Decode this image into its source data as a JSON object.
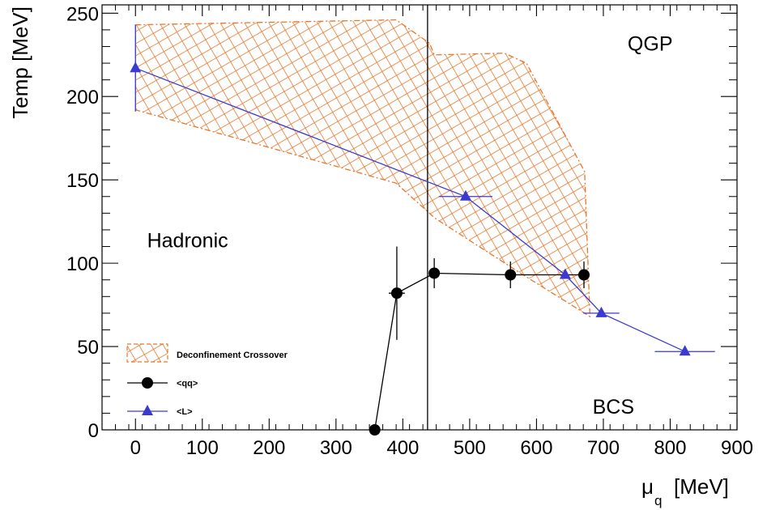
{
  "chart_data": {
    "type": "scatter",
    "title": "",
    "xlabel": "μ",
    "xlabel_subscript": "q",
    "xlabel_unit": "[MeV]",
    "ylabel": "Temp [MeV]",
    "xlim": [
      -50,
      900
    ],
    "ylim": [
      0,
      255
    ],
    "x_ticks": [
      0,
      100,
      200,
      300,
      400,
      500,
      600,
      700,
      800,
      900
    ],
    "y_ticks": [
      0,
      50,
      100,
      150,
      200,
      250
    ],
    "grid": false,
    "legend_placement": "bottom-left",
    "colors": {
      "band": "#e8762a",
      "qq": "#000000",
      "L": "#3a3ad0",
      "vertical_line": "#000000"
    },
    "region_labels": [
      {
        "text": "QGP",
        "x": 770,
        "y": 232
      },
      {
        "text": "Hadronic",
        "x": 78,
        "y": 114
      },
      {
        "text": "BCS",
        "x": 715,
        "y": 14
      }
    ],
    "vertical_line": {
      "x": 437
    },
    "band": {
      "name": "Deconfinement Crossover",
      "upper": [
        [
          0,
          243
        ],
        [
          390,
          246
        ],
        [
          440,
          232
        ],
        [
          447,
          225
        ],
        [
          552,
          226
        ],
        [
          585,
          220
        ],
        [
          672,
          155
        ]
      ],
      "lower": [
        [
          0,
          192
        ],
        [
          390,
          148
        ],
        [
          448,
          127
        ],
        [
          580,
          93
        ],
        [
          680,
          68
        ]
      ]
    },
    "series": [
      {
        "name": "<qq>",
        "marker": "circle",
        "points": [
          {
            "x": 358,
            "y": 0,
            "xerr": 0,
            "yerr": 0
          },
          {
            "x": 391,
            "y": 82,
            "xerr": 12,
            "yerr": 28
          },
          {
            "x": 447,
            "y": 94,
            "xerr": 0,
            "yerr": 9
          },
          {
            "x": 561,
            "y": 93,
            "xerr": 0,
            "yerr": 8
          },
          {
            "x": 671,
            "y": 93,
            "xerr": 0,
            "yerr": 8
          }
        ]
      },
      {
        "name": "<L>",
        "marker": "triangle",
        "points": [
          {
            "x": 0,
            "y": 217,
            "xerr": 0,
            "yerr": 26
          },
          {
            "x": 494,
            "y": 140,
            "xerr": 40,
            "yerr": 0
          },
          {
            "x": 643,
            "y": 93,
            "xerr": 0,
            "yerr": 0
          },
          {
            "x": 697,
            "y": 70,
            "xerr": 27,
            "yerr": 0
          },
          {
            "x": 822,
            "y": 47,
            "xerr": 45,
            "yerr": 0
          }
        ]
      }
    ]
  }
}
